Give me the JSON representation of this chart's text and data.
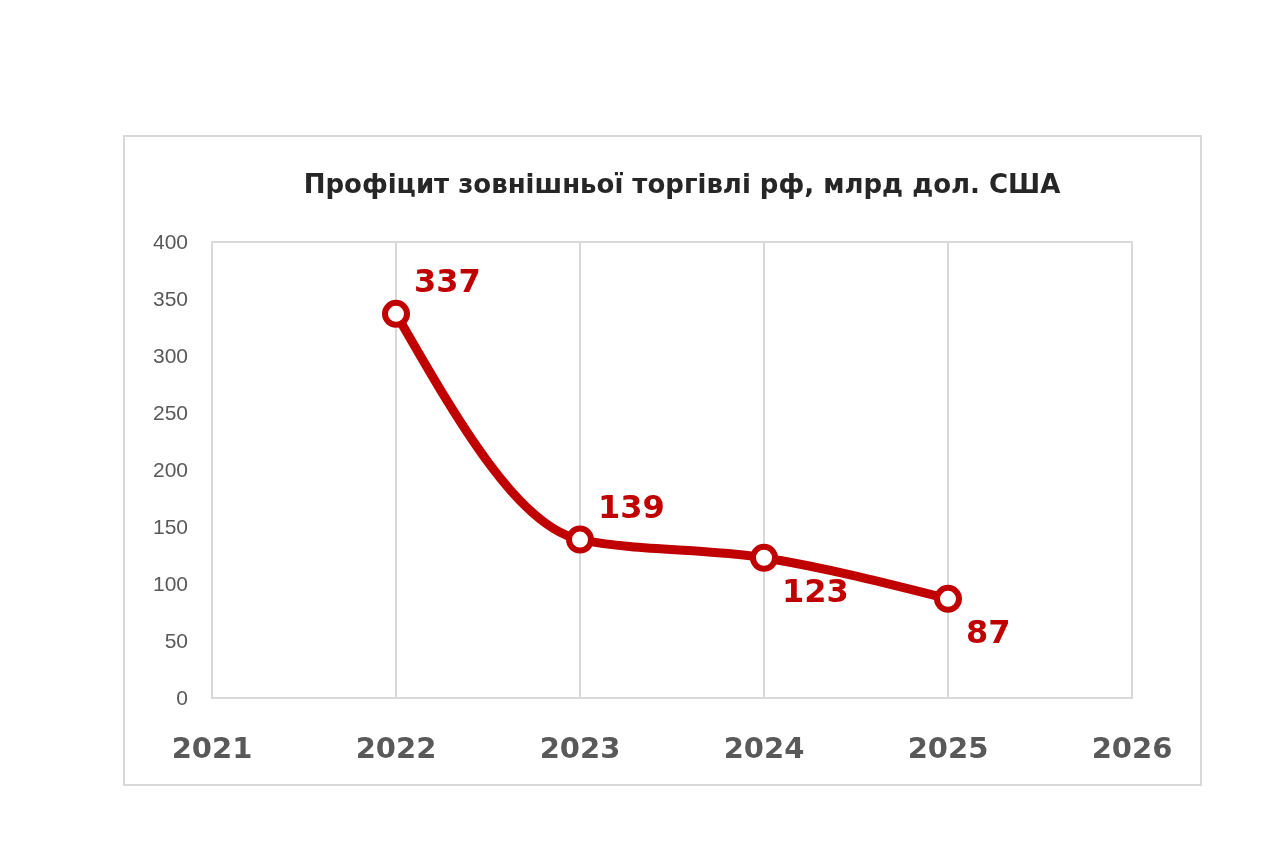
{
  "chart_data": {
    "type": "line",
    "title": "Профіцит зовнішньої торгівлі рф, млрд дол. США",
    "x": [
      2022,
      2023,
      2024,
      2025
    ],
    "series": [
      {
        "color": "#c00000",
        "values": [
          337,
          139,
          123,
          87
        ]
      }
    ],
    "xlim": [
      2021,
      2026
    ],
    "xticks": [
      2021,
      2022,
      2023,
      2024,
      2025,
      2026
    ],
    "ylim": [
      0,
      400
    ],
    "yticks": [
      0,
      50,
      100,
      150,
      200,
      250,
      300,
      350,
      400
    ],
    "grid": "x",
    "marker": "circle",
    "data_labels": true
  }
}
